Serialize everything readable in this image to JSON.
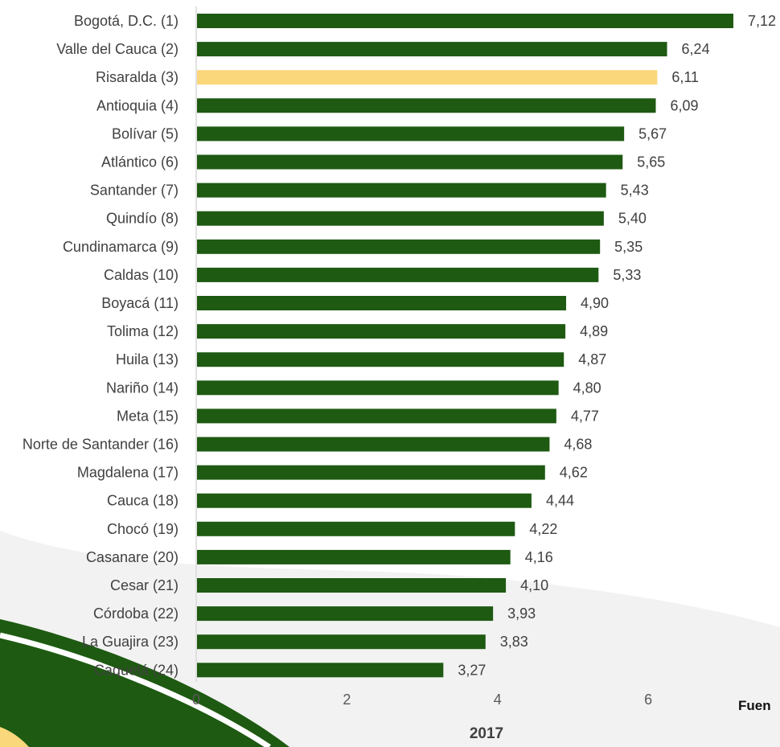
{
  "colors": {
    "bar": "#1E5A12",
    "highlight_bar": "#FBD77C",
    "axis": "#D9D9D9"
  },
  "source_note": "Fuen",
  "chart_data": {
    "type": "bar",
    "orientation": "horizontal",
    "highlighted_category": "Risaralda (3)",
    "categories": [
      "Bogotá, D.C. (1)",
      "Valle del Cauca (2)",
      "Risaralda (3)",
      "Antioquia (4)",
      "Bolívar (5)",
      "Atlántico (6)",
      "Santander (7)",
      "Quindío (8)",
      "Cundinamarca (9)",
      "Caldas (10)",
      "Boyacá (11)",
      "Tolima (12)",
      "Huila (13)",
      "Nariño (14)",
      "Meta (15)",
      "Norte de Santander (16)",
      "Magdalena (17)",
      "Cauca (18)",
      "Chocó (19)",
      "Casanare (20)",
      "Cesar (21)",
      "Córdoba (22)",
      "La Guajira (23)",
      "Caquetá (24)"
    ],
    "values": [
      7.12,
      6.24,
      6.11,
      6.09,
      5.67,
      5.65,
      5.43,
      5.4,
      5.35,
      5.33,
      4.9,
      4.89,
      4.87,
      4.8,
      4.77,
      4.68,
      4.62,
      4.44,
      4.22,
      4.16,
      4.1,
      3.93,
      3.83,
      3.27
    ],
    "value_labels": [
      "7,12",
      "6,24",
      "6,11",
      "6,09",
      "5,67",
      "5,65",
      "5,43",
      "5,40",
      "5,35",
      "5,33",
      "4,90",
      "4,89",
      "4,87",
      "4,80",
      "4,77",
      "4,68",
      "4,62",
      "4,44",
      "4,22",
      "4,16",
      "4,10",
      "3,93",
      "3,83",
      "3,27"
    ],
    "x_ticks": [
      "0",
      "2",
      "4",
      "6"
    ],
    "xlim": [
      0,
      8
    ],
    "xlabel": "2017",
    "ylabel": "",
    "grid": false,
    "legend": false
  }
}
